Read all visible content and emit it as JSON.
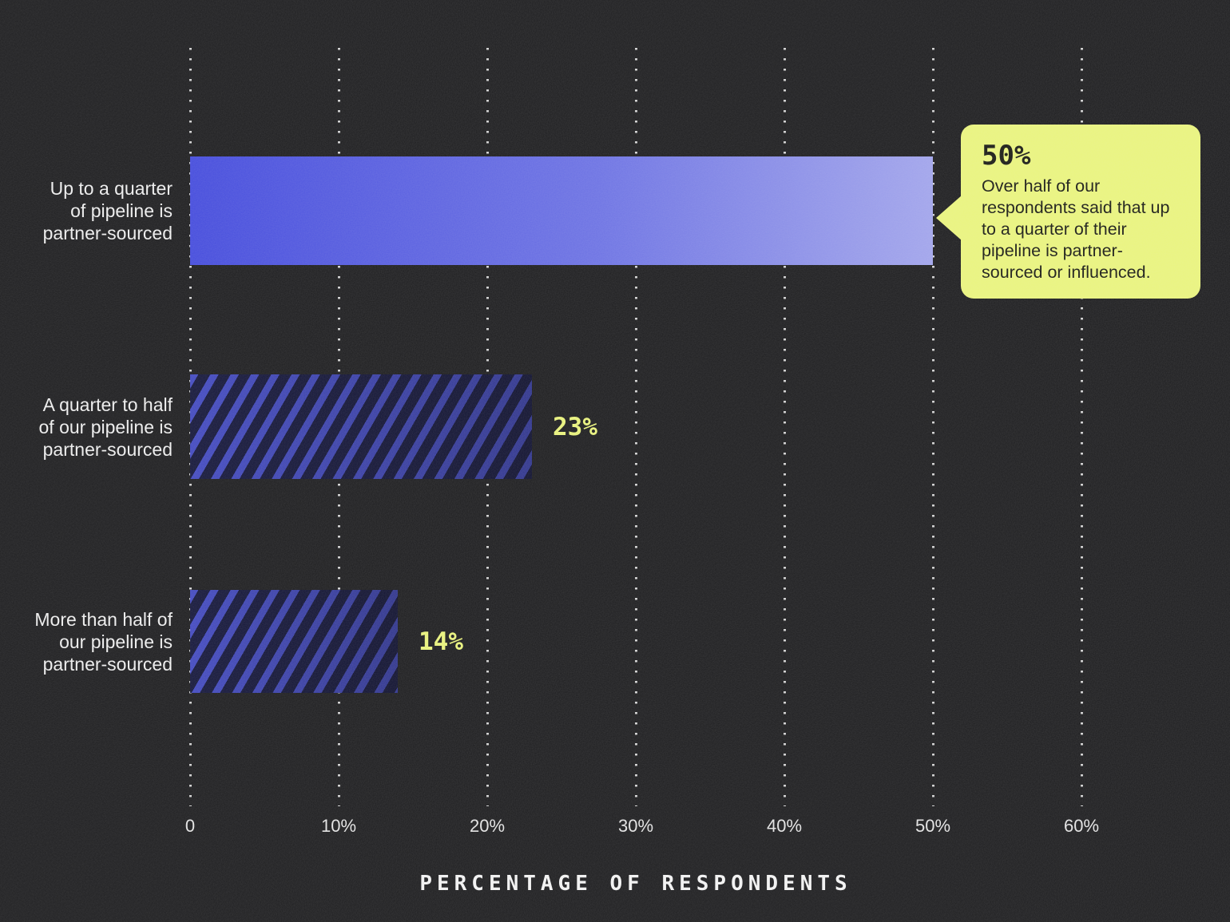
{
  "chart_data": {
    "type": "bar",
    "orientation": "horizontal",
    "title": "",
    "xlabel": "PERCENTAGE OF RESPONDENTS",
    "ylabel": "",
    "xlim": [
      0,
      65
    ],
    "grid": "dotted-vertical-gridlines",
    "legend_position": "none",
    "x_tick_labels": [
      "0",
      "10%",
      "20%",
      "30%",
      "40%",
      "50%",
      "60%"
    ],
    "x_tick_values": [
      0,
      10,
      20,
      30,
      40,
      50,
      60
    ],
    "categories": [
      "Up to a quarter\nof pipeline is\npartner-sourced",
      "A quarter to half\nof our pipeline is\npartner-sourced",
      "More than half of\nour pipeline is\npartner-sourced"
    ],
    "values": [
      50,
      23,
      14
    ],
    "bar_styles": [
      "gradient",
      "hatch",
      "hatch"
    ],
    "value_labels": [
      "",
      "23%",
      "14%"
    ],
    "callout": {
      "value": "50%",
      "text": "Over half of our respondents said that up to a quarter of their pipeline is partner-sourced or influenced."
    }
  },
  "colors": {
    "background": "#1e1e20",
    "bar_gradient_start": "#454cdd",
    "bar_gradient_end": "#a2a5ec",
    "hatch_stripe": "#434ac0",
    "hatch_dark": "#16183c",
    "accent_yellow": "#eaf47e",
    "value_label_yellow": "#e9f27c",
    "text_white": "#ededed",
    "callout_text": "#1b1c16"
  }
}
